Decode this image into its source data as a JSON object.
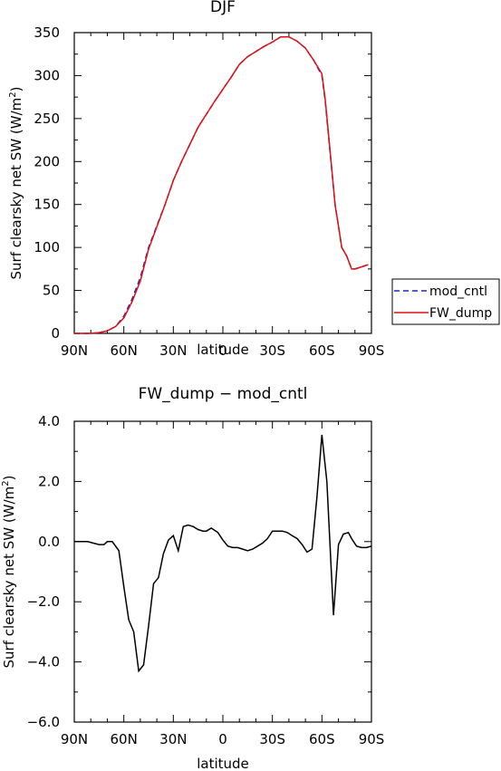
{
  "chart_data": [
    {
      "type": "line",
      "title": "DJF",
      "xlabel": "latitude",
      "ylabel": "Surf clearsky net SW (W/m²)",
      "ylabel_text": "Surf clearsky net SW (W/m",
      "ylabel_sup": "2",
      "ylabel_close": ")",
      "xlim": [
        90,
        -90
      ],
      "ylim": [
        0,
        350
      ],
      "xticks": [
        90,
        60,
        30,
        0,
        -30,
        -60,
        -90
      ],
      "xtick_labels": [
        "90N",
        "60N",
        "30N",
        "0",
        "30S",
        "60S",
        "90S"
      ],
      "yticks": [
        0,
        50,
        100,
        150,
        200,
        250,
        300,
        350
      ],
      "ytick_labels": [
        "0",
        "50",
        "100",
        "150",
        "200",
        "250",
        "300",
        "350"
      ],
      "legend_placement": "right, outside plot area",
      "x": [
        90,
        85,
        80,
        75,
        70,
        65,
        60,
        55,
        50,
        45,
        40,
        35,
        30,
        25,
        20,
        15,
        10,
        5,
        0,
        -5,
        -10,
        -15,
        -20,
        -25,
        -30,
        -35,
        -40,
        -45,
        -50,
        -55,
        -60,
        -62,
        -65,
        -68,
        -70,
        -72,
        -75,
        -78,
        -80,
        -85,
        -88
      ],
      "series": [
        {
          "name": "mod_cntl",
          "color": "#2222cc",
          "dash": "dashed",
          "values": [
            0,
            0,
            0,
            1,
            3,
            8,
            20,
            40,
            65,
            100,
            125,
            150,
            178,
            200,
            220,
            240,
            255,
            270,
            284,
            298,
            313,
            322,
            328,
            334,
            339,
            345,
            345,
            340,
            332,
            318,
            300,
            270,
            210,
            150,
            125,
            100,
            90,
            75,
            75,
            78,
            80
          ]
        },
        {
          "name": "FW_dump",
          "color": "#dd1111",
          "dash": "solid",
          "values": [
            0,
            0,
            0,
            1,
            3,
            8,
            18,
            37,
            61,
            98,
            124,
            150,
            178,
            200,
            220,
            240,
            255,
            270,
            284,
            298,
            313,
            322,
            328,
            334,
            339,
            345,
            345,
            340,
            332,
            318,
            302,
            272,
            212,
            149,
            125,
            100,
            90,
            75,
            75,
            78,
            80
          ]
        }
      ]
    },
    {
      "type": "line",
      "title": "FW_dump − mod_cntl",
      "xlabel": "latitude",
      "ylabel": "Surf clearsky net SW (W/m²)",
      "ylabel_text": "Surf clearsky net SW (W/m",
      "ylabel_sup": "2",
      "ylabel_close": ")",
      "xlim": [
        90,
        -90
      ],
      "ylim": [
        -6,
        4
      ],
      "xticks": [
        90,
        60,
        30,
        0,
        -30,
        -60,
        -90
      ],
      "xtick_labels": [
        "90N",
        "60N",
        "30N",
        "0",
        "30S",
        "60S",
        "90S"
      ],
      "yticks": [
        -6,
        -4,
        -2,
        0,
        2,
        4
      ],
      "ytick_labels": [
        "−6.0",
        "−4.0",
        "−2.0",
        "0.0",
        "2.0",
        "4.0"
      ],
      "x": [
        90,
        82,
        75,
        72,
        70,
        67,
        63,
        60,
        57,
        54,
        51,
        48,
        45,
        42,
        39,
        36,
        33,
        30,
        27,
        24,
        21,
        18,
        15,
        12,
        10,
        7,
        3,
        0,
        -3,
        -6,
        -9,
        -12,
        -15,
        -18,
        -21,
        -24,
        -27,
        -30,
        -33,
        -36,
        -39,
        -42,
        -45,
        -48,
        -51,
        -54,
        -57,
        -60,
        -63,
        -67,
        -70,
        -73,
        -76,
        -78,
        -81,
        -84,
        -87,
        -90
      ],
      "series": [
        {
          "name": "",
          "color": "#000000",
          "values": [
            0,
            0,
            -0.1,
            -0.1,
            0,
            0,
            -0.3,
            -1.5,
            -2.6,
            -3,
            -4.3,
            -4.1,
            -2.8,
            -1.4,
            -1.2,
            -0.4,
            0.05,
            0.2,
            -0.3,
            0.5,
            0.55,
            0.5,
            0.4,
            0.35,
            0.35,
            0.45,
            0.3,
            0.05,
            -0.15,
            -0.2,
            -0.2,
            -0.25,
            -0.3,
            -0.25,
            -0.15,
            -0.05,
            0.1,
            0.35,
            0.35,
            0.35,
            0.3,
            0.2,
            0.1,
            -0.1,
            -0.35,
            -0.25,
            1.5,
            3.55,
            2.0,
            -2.45,
            -0.1,
            0.25,
            0.3,
            0.1,
            -0.15,
            -0.2,
            -0.2,
            -0.15
          ]
        }
      ]
    }
  ]
}
